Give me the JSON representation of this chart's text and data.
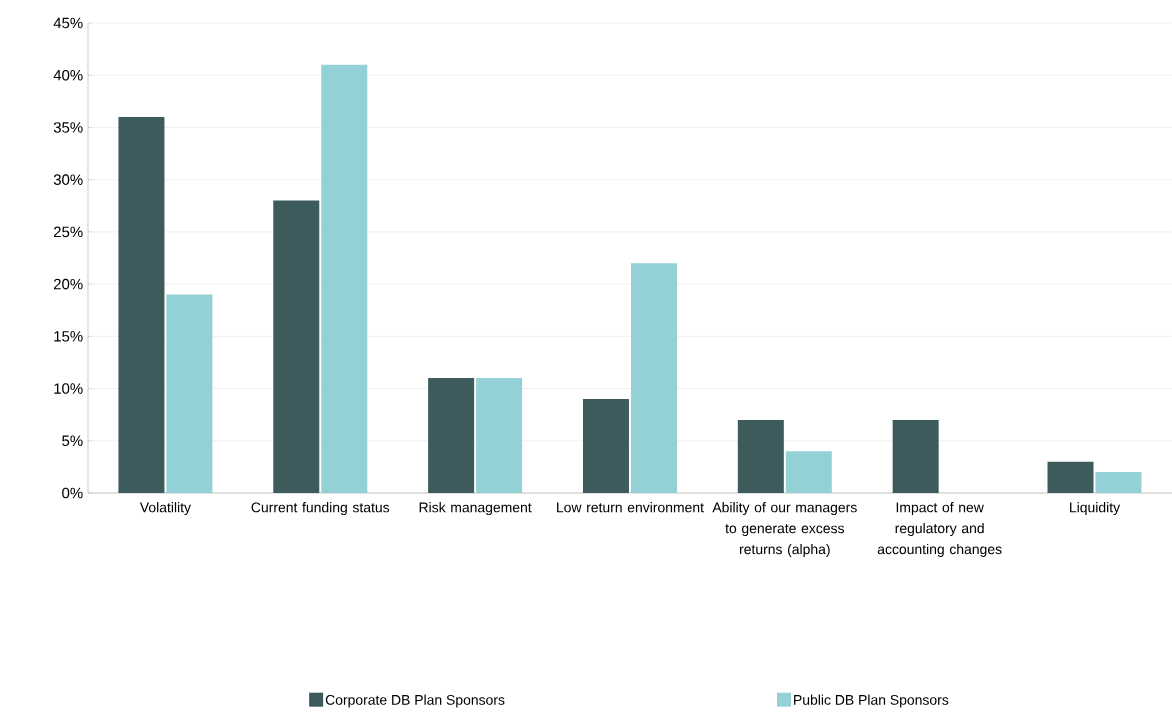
{
  "chart_data": {
    "type": "bar",
    "categories": [
      "Volatility",
      "Current funding status",
      "Risk management",
      "Low return environment",
      "Ability of our managers to generate excess returns (alpha)",
      "Impact of new regulatory and accounting changes",
      "Liquidity"
    ],
    "series": [
      {
        "name": "Corporate DB Plan Sponsors",
        "color": "#3d5a5c",
        "values": [
          36,
          28,
          11,
          9,
          7,
          7,
          3
        ]
      },
      {
        "name": "Public DB Plan Sponsors",
        "color": "#93d1d6",
        "values": [
          19,
          41,
          11,
          22,
          4,
          0,
          2
        ]
      }
    ],
    "ylim": [
      0,
      45
    ],
    "yticks": [
      {
        "value": 0,
        "label": "0%"
      },
      {
        "value": 5,
        "label": "5%"
      },
      {
        "value": 10,
        "label": "10%"
      },
      {
        "value": 15,
        "label": "15%"
      },
      {
        "value": 20,
        "label": "20%"
      },
      {
        "value": 25,
        "label": "25%"
      },
      {
        "value": 30,
        "label": "30%"
      },
      {
        "value": 35,
        "label": "35%"
      },
      {
        "value": 40,
        "label": "40%"
      },
      {
        "value": 45,
        "label": "45%"
      }
    ],
    "grid": "y",
    "legend": "bottom"
  }
}
